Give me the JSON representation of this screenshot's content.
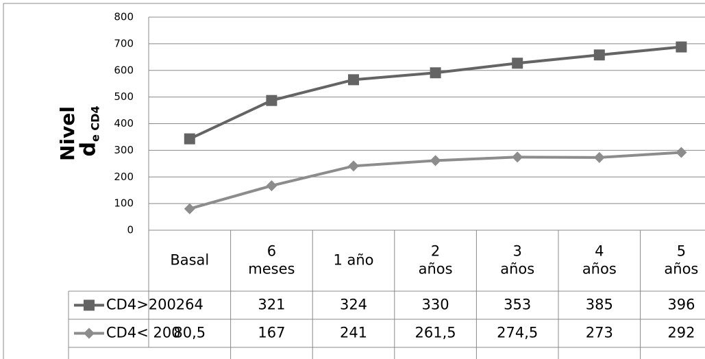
{
  "chart_data": {
    "type": "line",
    "y_label": [
      "Nivel",
      "d",
      "e CD4"
    ],
    "categories": [
      [
        "Basal"
      ],
      [
        "6",
        "meses"
      ],
      [
        "1 año"
      ],
      [
        "2",
        "años"
      ],
      [
        "3",
        "años"
      ],
      [
        "4",
        "años"
      ],
      [
        "5",
        "años"
      ]
    ],
    "series": [
      {
        "name": "CD4>200",
        "color": "#646464",
        "marker": "square",
        "values": [
          343,
          487,
          565,
          591,
          627,
          658,
          688
        ]
      },
      {
        "name": "CD4< 200",
        "color": "#8c8c8c",
        "marker": "diamond",
        "values": [
          80.5,
          167,
          241,
          261.5,
          274.5,
          273,
          292
        ]
      }
    ],
    "table": [
      [
        "264",
        "321",
        "324",
        "330",
        "353",
        "385",
        "396"
      ],
      [
        "80,5",
        "167",
        "241",
        "261,5",
        "274,5",
        "273",
        "292"
      ]
    ],
    "ylim": [
      0,
      800
    ],
    "yticks": [
      0,
      100,
      200,
      300,
      400,
      500,
      600,
      700,
      800
    ],
    "grid": true
  }
}
